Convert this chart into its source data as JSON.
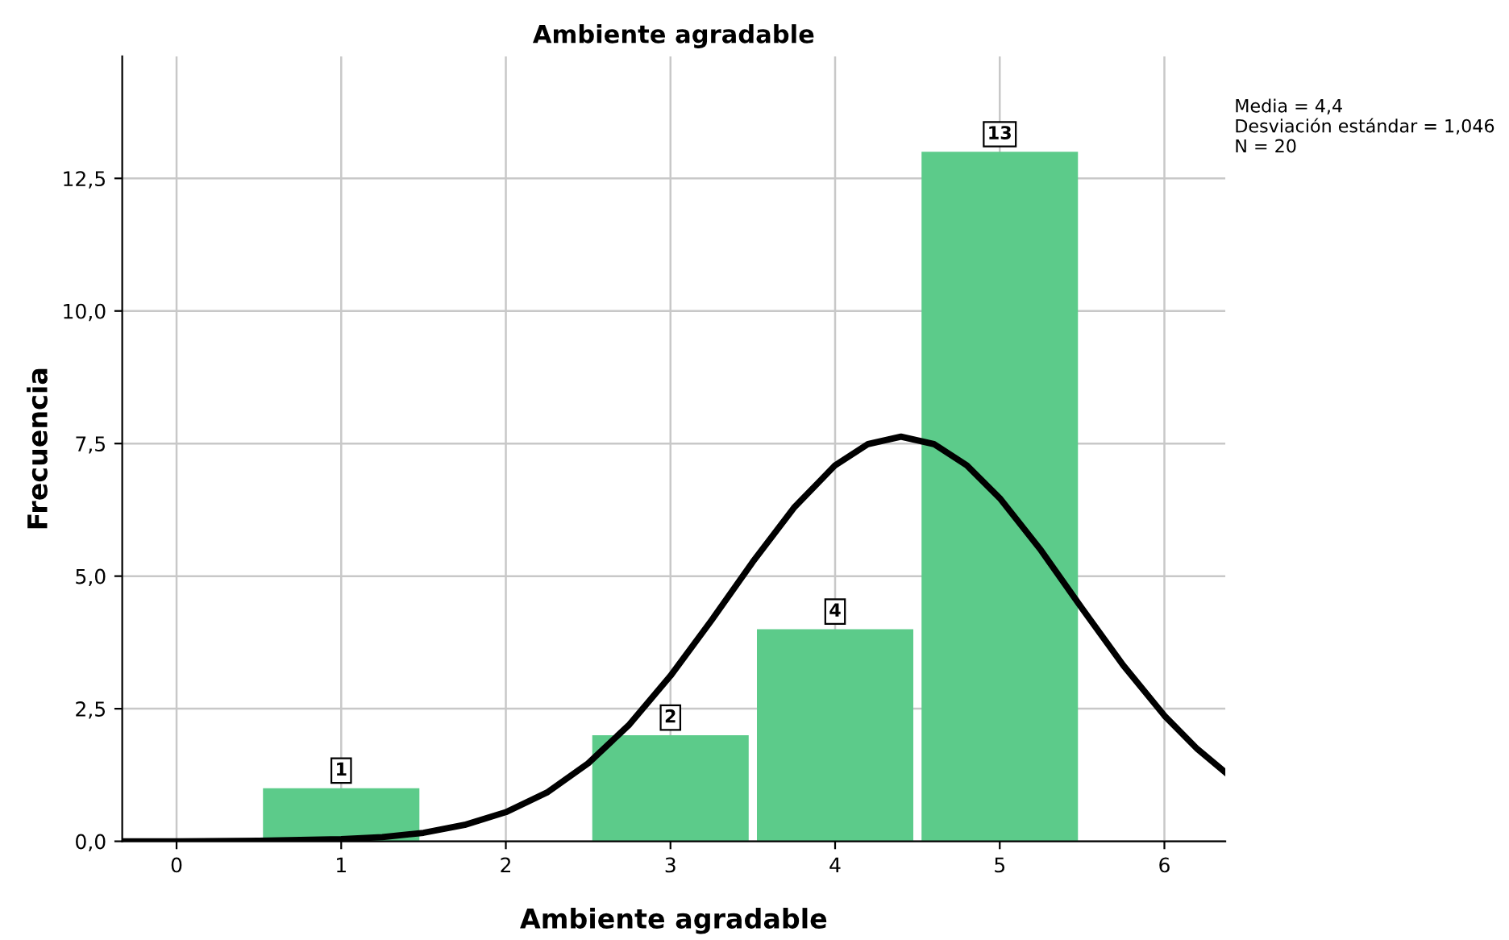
{
  "chart_data": {
    "type": "histogram",
    "title": "Ambiente agradable",
    "xlabel": "Ambiente agradable",
    "ylabel": "Frecuencia",
    "bins": [
      0.5,
      1.5,
      2.5,
      3.5,
      4.5,
      5.5
    ],
    "series": [
      {
        "color": "#5ccb8a",
        "values": [
          1,
          0,
          2,
          4,
          13
        ],
        "value_labels": [
          "1",
          null,
          "2",
          "4",
          "13"
        ]
      },
      {
        "type": "line",
        "color": "#000000",
        "x": [
          -0.33,
          0,
          0.5,
          1,
          1.25,
          1.5,
          1.75,
          2,
          2.25,
          2.5,
          2.75,
          3,
          3.25,
          3.5,
          3.75,
          4,
          4.2,
          4.4,
          4.6,
          4.8,
          5,
          5.25,
          5.5,
          5.75,
          6,
          6.2,
          6.37
        ],
        "values": [
          0,
          0,
          0.01,
          0.04,
          0.08,
          0.16,
          0.31,
          0.55,
          0.92,
          1.47,
          2.2,
          3.12,
          4.17,
          5.27,
          6.29,
          7.09,
          7.49,
          7.63,
          7.49,
          7.09,
          6.47,
          5.49,
          4.39,
          3.32,
          2.37,
          1.74,
          1.3
        ]
      }
    ],
    "xlim": [
      -0.33,
      6.37
    ],
    "ylim": [
      0,
      14.8
    ],
    "xticks": [
      0,
      1,
      2,
      3,
      4,
      5,
      6
    ],
    "yticks": [
      {
        "value": 0,
        "label": "0,0"
      },
      {
        "value": 2.5,
        "label": "2,5"
      },
      {
        "value": 5,
        "label": "5,0"
      },
      {
        "value": 7.5,
        "label": "7,5"
      },
      {
        "value": 10,
        "label": "10,0"
      },
      {
        "value": 12.5,
        "label": "12,5"
      }
    ],
    "grid": true,
    "annotations": [
      "Media = 4,4\nDesviación estándar = 1,046\nN = 20"
    ]
  }
}
